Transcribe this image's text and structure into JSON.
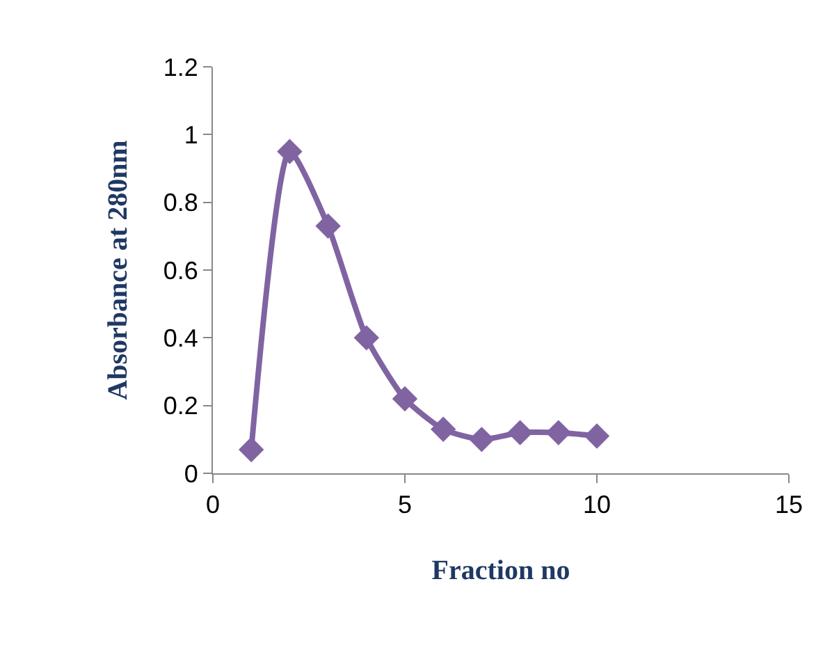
{
  "chart_data": {
    "type": "line",
    "xlabel": "Fraction no",
    "ylabel": "Absorbance at 280nm",
    "x": [
      1,
      2,
      3,
      4,
      5,
      6,
      7,
      8,
      9,
      10
    ],
    "series": [
      {
        "color": "#8064a2",
        "values": [
          0.07,
          0.95,
          0.73,
          0.4,
          0.22,
          0.13,
          0.1,
          0.12,
          0.12,
          0.11
        ]
      }
    ],
    "xlim": [
      0,
      15
    ],
    "xticks": [
      0,
      5,
      10,
      15
    ],
    "ylim": [
      0,
      1.2
    ],
    "yticks": [
      0,
      0.2,
      0.4,
      0.6,
      0.8,
      1,
      1.2
    ],
    "marker": "diamond",
    "line_style": "solid",
    "grid": false
  }
}
